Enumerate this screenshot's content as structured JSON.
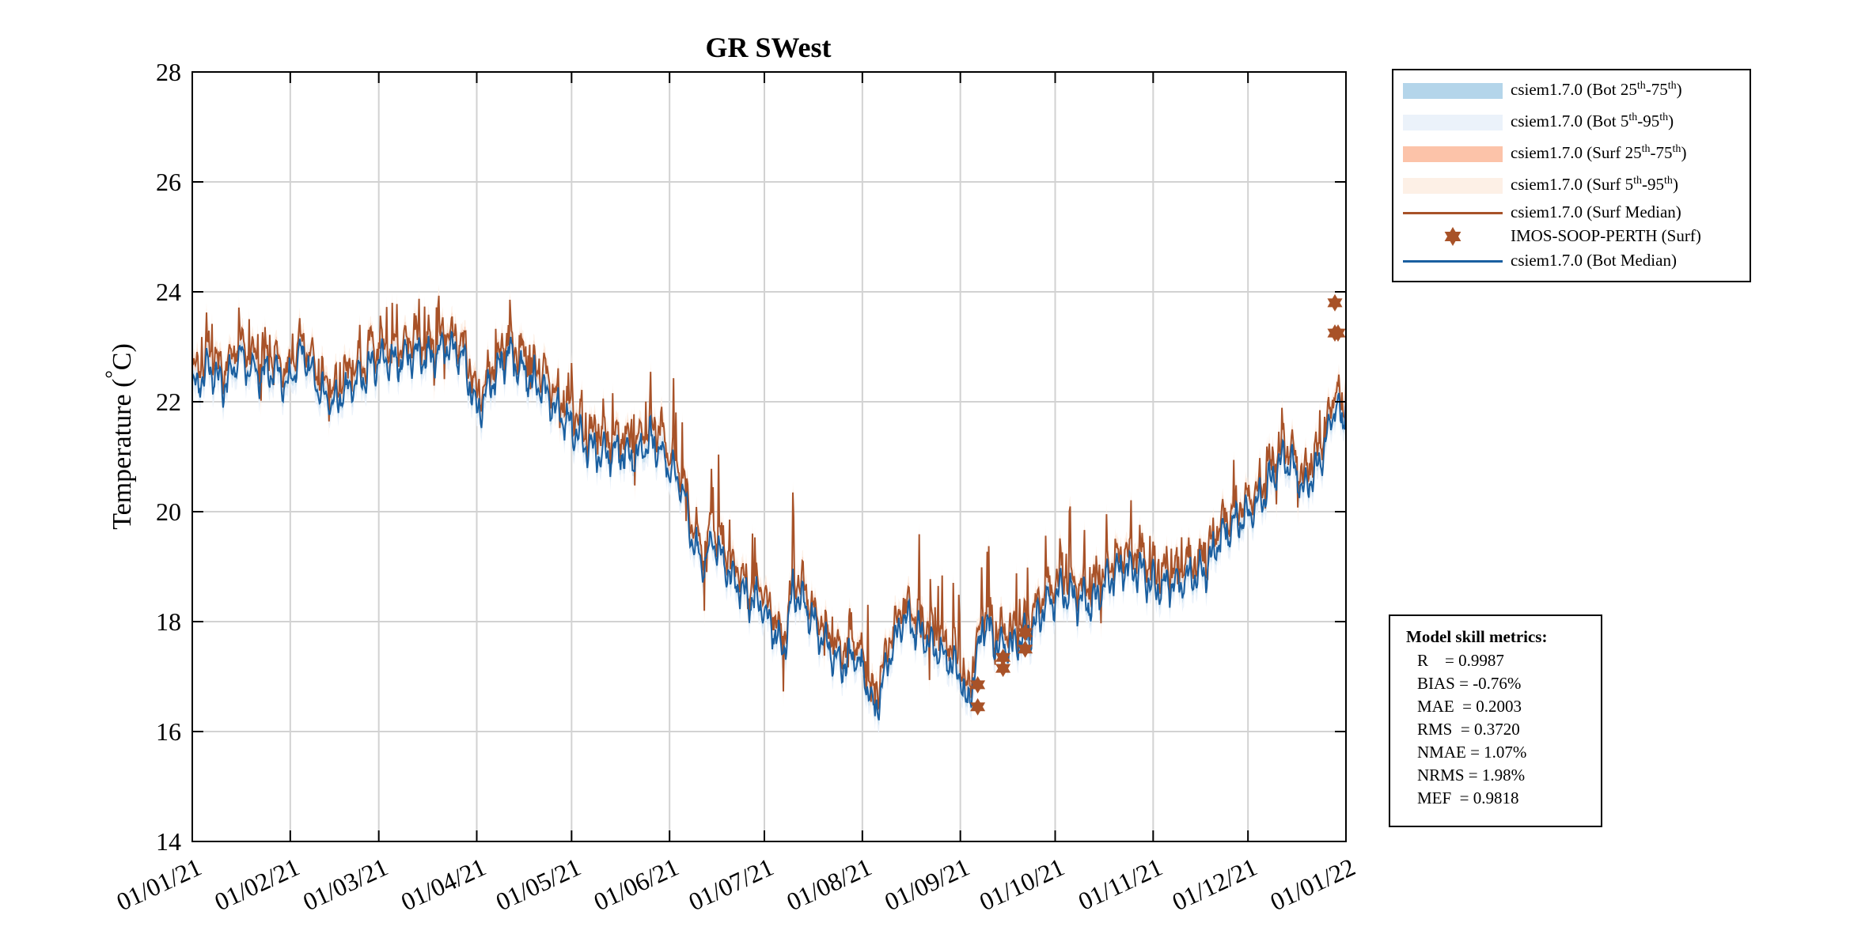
{
  "chart_data": {
    "type": "line",
    "title": "GR SWest",
    "ylabel": "Temperature (°C)",
    "ylabel_main": "Temperature (",
    "ylabel_degree": "°",
    "ylabel_unit": "C)",
    "xlabel": "",
    "ylim": [
      14,
      28
    ],
    "yticks": [
      14,
      16,
      18,
      20,
      22,
      24,
      26,
      28
    ],
    "xlim": [
      0,
      365
    ],
    "xticks": [
      {
        "day": 0,
        "label": "01/01/21"
      },
      {
        "day": 31,
        "label": "01/02/21"
      },
      {
        "day": 59,
        "label": "01/03/21"
      },
      {
        "day": 90,
        "label": "01/04/21"
      },
      {
        "day": 120,
        "label": "01/05/21"
      },
      {
        "day": 151,
        "label": "01/06/21"
      },
      {
        "day": 181,
        "label": "01/07/21"
      },
      {
        "day": 212,
        "label": "01/08/21"
      },
      {
        "day": 243,
        "label": "01/09/21"
      },
      {
        "day": 273,
        "label": "01/10/21"
      },
      {
        "day": 304,
        "label": "01/11/21"
      },
      {
        "day": 334,
        "label": "01/12/21"
      },
      {
        "day": 365,
        "label": "01/01/22"
      }
    ],
    "grid": true,
    "bot_median_anchors": [
      [
        0,
        22.2
      ],
      [
        5,
        22.6
      ],
      [
        10,
        22.3
      ],
      [
        15,
        22.8
      ],
      [
        20,
        22.5
      ],
      [
        25,
        22.6
      ],
      [
        30,
        22.3
      ],
      [
        35,
        22.9
      ],
      [
        40,
        22.2
      ],
      [
        45,
        22.0
      ],
      [
        50,
        22.3
      ],
      [
        55,
        22.5
      ],
      [
        60,
        22.8
      ],
      [
        65,
        22.7
      ],
      [
        70,
        22.9
      ],
      [
        75,
        22.8
      ],
      [
        80,
        23.0
      ],
      [
        85,
        22.9
      ],
      [
        88,
        22.3
      ],
      [
        90,
        21.8
      ],
      [
        95,
        22.4
      ],
      [
        100,
        22.9
      ],
      [
        105,
        22.5
      ],
      [
        110,
        22.3
      ],
      [
        115,
        21.9
      ],
      [
        120,
        21.5
      ],
      [
        125,
        21.2
      ],
      [
        130,
        21.0
      ],
      [
        135,
        21.1
      ],
      [
        140,
        21.0
      ],
      [
        145,
        21.3
      ],
      [
        150,
        20.9
      ],
      [
        155,
        20.5
      ],
      [
        158,
        19.5
      ],
      [
        162,
        19.0
      ],
      [
        165,
        19.5
      ],
      [
        170,
        18.8
      ],
      [
        175,
        18.5
      ],
      [
        180,
        18.3
      ],
      [
        183,
        18.0
      ],
      [
        187,
        17.4
      ],
      [
        190,
        18.6
      ],
      [
        195,
        18.2
      ],
      [
        200,
        17.6
      ],
      [
        205,
        17.2
      ],
      [
        210,
        17.4
      ],
      [
        213,
        16.9
      ],
      [
        216,
        16.3
      ],
      [
        220,
        17.3
      ],
      [
        225,
        18.1
      ],
      [
        230,
        17.8
      ],
      [
        235,
        17.5
      ],
      [
        240,
        17.3
      ],
      [
        243,
        17.0
      ],
      [
        245,
        16.4
      ],
      [
        248,
        17.2
      ],
      [
        250,
        18.0
      ],
      [
        255,
        17.6
      ],
      [
        260,
        17.5
      ],
      [
        265,
        17.8
      ],
      [
        270,
        18.3
      ],
      [
        275,
        18.6
      ],
      [
        280,
        18.4
      ],
      [
        285,
        18.3
      ],
      [
        290,
        18.8
      ],
      [
        295,
        19.0
      ],
      [
        300,
        18.9
      ],
      [
        305,
        18.6
      ],
      [
        310,
        18.7
      ],
      [
        315,
        18.8
      ],
      [
        320,
        18.9
      ],
      [
        325,
        19.5
      ],
      [
        330,
        19.8
      ],
      [
        335,
        20.0
      ],
      [
        340,
        20.4
      ],
      [
        345,
        21.0
      ],
      [
        348,
        20.8
      ],
      [
        352,
        20.4
      ],
      [
        356,
        20.8
      ],
      [
        360,
        21.5
      ],
      [
        362,
        22.1
      ],
      [
        364,
        21.4
      ],
      [
        365,
        22.3
      ]
    ],
    "observations_surf": [
      {
        "day": 248.5,
        "temp": 16.85
      },
      {
        "day": 248.5,
        "temp": 16.45
      },
      {
        "day": 256.5,
        "temp": 17.35
      },
      {
        "day": 256.5,
        "temp": 17.15
      },
      {
        "day": 263.5,
        "temp": 17.5
      },
      {
        "day": 263.5,
        "temp": 17.8
      },
      {
        "day": 361.5,
        "temp": 23.8
      },
      {
        "day": 361.5,
        "temp": 23.25
      },
      {
        "day": 362.5,
        "temp": 23.25
      }
    ],
    "series": [
      {
        "name": "csiem1.7.0 (Bot 25th-75th)",
        "style": "band",
        "color": "#b4d5ea"
      },
      {
        "name": "csiem1.7.0 (Bot 5th-95th)",
        "style": "band",
        "color": "#ebf2fa"
      },
      {
        "name": "csiem1.7.0 (Surf 25th-75th)",
        "style": "band",
        "color": "#fcc3a9"
      },
      {
        "name": "csiem1.7.0 (Surf 5th-95th)",
        "style": "band",
        "color": "#fdf0e6"
      },
      {
        "name": "csiem1.7.0 (Surf Median)",
        "style": "line",
        "color": "#a85228"
      },
      {
        "name": "IMOS-SOOP-PERTH (Surf)",
        "style": "marker",
        "color": "#a85228"
      },
      {
        "name": "csiem1.7.0 (Bot Median)",
        "style": "line",
        "color": "#1a5fa0"
      }
    ]
  },
  "legend": [
    {
      "base": "csiem1.7.0 (Bot 25",
      "sup1": "th",
      "mid": "-75",
      "sup2": "th",
      "end": ")"
    },
    {
      "base": "csiem1.7.0 (Bot 5",
      "sup1": "th",
      "mid": "-95",
      "sup2": "th",
      "end": ")"
    },
    {
      "base": "csiem1.7.0 (Surf 25",
      "sup1": "th",
      "mid": "-75",
      "sup2": "th",
      "end": ")"
    },
    {
      "base": "csiem1.7.0 (Surf 5",
      "sup1": "th",
      "mid": "-95",
      "sup2": "th",
      "end": ")"
    },
    {
      "base": "csiem1.7.0 (Surf Median)"
    },
    {
      "base": "IMOS-SOOP-PERTH (Surf)"
    },
    {
      "base": "csiem1.7.0 (Bot Median)"
    }
  ],
  "metrics": {
    "title": "Model skill metrics:",
    "lines": [
      "R    = 0.9987",
      "BIAS = -0.76%",
      "MAE  = 0.2003",
      "RMS  = 0.3720",
      "NMAE = 1.07%",
      "NRMS = 1.98%",
      "MEF  = 0.9818"
    ]
  }
}
